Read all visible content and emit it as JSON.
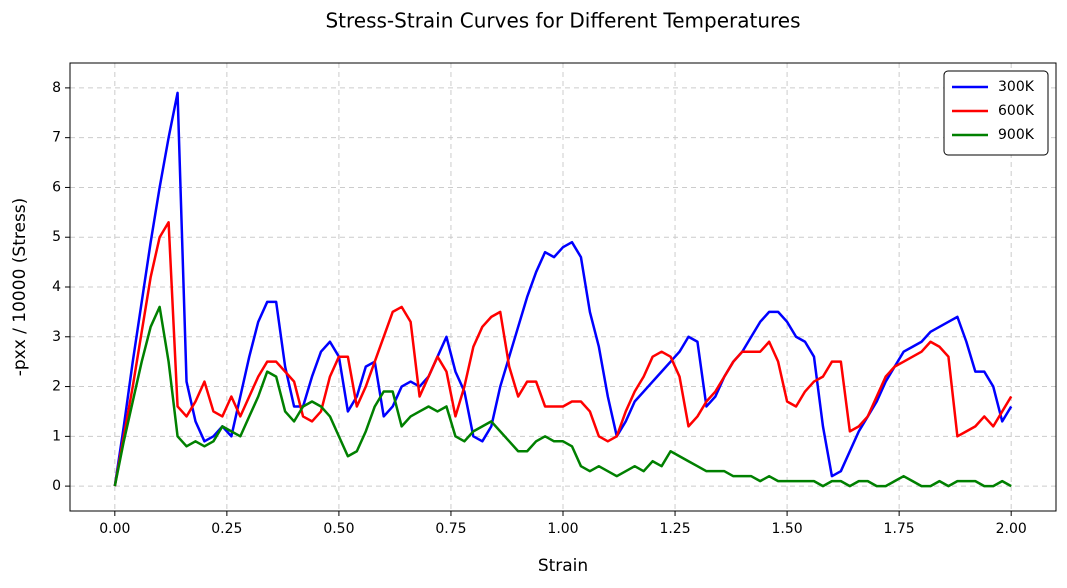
{
  "chart_data": {
    "type": "line",
    "title": "Stress-Strain Curves for Different Temperatures",
    "x_label": "Strain",
    "y_label": "-pxx / 10000 (Stress)",
    "x": [
      0,
      0.02,
      0.04,
      0.06,
      0.08,
      0.1,
      0.12,
      0.14,
      0.16,
      0.18,
      0.2,
      0.22,
      0.24,
      0.26,
      0.28,
      0.3,
      0.32,
      0.34,
      0.36,
      0.38,
      0.4,
      0.42,
      0.44,
      0.46,
      0.48,
      0.5,
      0.52,
      0.54,
      0.56,
      0.58,
      0.6,
      0.62,
      0.64,
      0.66,
      0.68,
      0.7,
      0.72,
      0.74,
      0.76,
      0.78,
      0.8,
      0.82,
      0.84,
      0.86,
      0.88,
      0.9,
      0.92,
      0.94,
      0.96,
      0.98,
      1,
      1.02,
      1.04,
      1.06,
      1.08,
      1.1,
      1.12,
      1.14,
      1.16,
      1.18,
      1.2,
      1.22,
      1.24,
      1.26,
      1.28,
      1.3,
      1.32,
      1.34,
      1.36,
      1.38,
      1.4,
      1.42,
      1.44,
      1.46,
      1.48,
      1.5,
      1.52,
      1.54,
      1.56,
      1.58,
      1.6,
      1.62,
      1.64,
      1.66,
      1.68,
      1.7,
      1.72,
      1.74,
      1.76,
      1.78,
      1.8,
      1.82,
      1.84,
      1.86,
      1.88,
      1.9,
      1.92,
      1.94,
      1.96,
      1.98,
      2
    ],
    "series": [
      {
        "name": "300K",
        "color": "#0000ff",
        "values": [
          0,
          1.2,
          2.5,
          3.7,
          4.9,
          6.0,
          7.0,
          7.9,
          2.1,
          1.3,
          0.9,
          1.0,
          1.2,
          1.0,
          1.8,
          2.6,
          3.3,
          3.7,
          3.7,
          2.4,
          1.6,
          1.6,
          2.2,
          2.7,
          2.9,
          2.6,
          1.5,
          1.8,
          2.4,
          2.5,
          1.4,
          1.6,
          2.0,
          2.1,
          2.0,
          2.2,
          2.6,
          3.0,
          2.3,
          1.9,
          1.0,
          0.9,
          1.2,
          2.0,
          2.6,
          3.2,
          3.8,
          4.3,
          4.7,
          4.6,
          4.8,
          4.9,
          4.6,
          3.5,
          2.8,
          1.8,
          1.0,
          1.3,
          1.7,
          1.9,
          2.1,
          2.3,
          2.5,
          2.7,
          3.0,
          2.9,
          1.6,
          1.8,
          2.2,
          2.5,
          2.7,
          3.0,
          3.3,
          3.5,
          3.5,
          3.3,
          3.0,
          2.9,
          2.6,
          1.2,
          0.2,
          0.3,
          0.7,
          1.1,
          1.4,
          1.7,
          2.1,
          2.4,
          2.7,
          2.8,
          2.9,
          3.1,
          3.2,
          3.3,
          3.4,
          2.9,
          2.3,
          2.3,
          2.0,
          1.3,
          1.6
        ]
      },
      {
        "name": "600K",
        "color": "#ff0000",
        "values": [
          0,
          1.0,
          2.0,
          3.1,
          4.2,
          5.0,
          5.3,
          1.6,
          1.4,
          1.7,
          2.1,
          1.5,
          1.4,
          1.8,
          1.4,
          1.8,
          2.2,
          2.5,
          2.5,
          2.3,
          2.1,
          1.4,
          1.3,
          1.5,
          2.2,
          2.6,
          2.6,
          1.6,
          2.0,
          2.5,
          3.0,
          3.5,
          3.6,
          3.3,
          1.8,
          2.2,
          2.6,
          2.3,
          1.4,
          2.0,
          2.8,
          3.2,
          3.4,
          3.5,
          2.4,
          1.8,
          2.1,
          2.1,
          1.6,
          1.6,
          1.6,
          1.7,
          1.7,
          1.5,
          1.0,
          0.9,
          1.0,
          1.5,
          1.9,
          2.2,
          2.6,
          2.7,
          2.6,
          2.2,
          1.2,
          1.4,
          1.7,
          1.9,
          2.2,
          2.5,
          2.7,
          2.7,
          2.7,
          2.9,
          2.5,
          1.7,
          1.6,
          1.9,
          2.1,
          2.2,
          2.5,
          2.5,
          1.1,
          1.2,
          1.4,
          1.8,
          2.2,
          2.4,
          2.5,
          2.6,
          2.7,
          2.9,
          2.8,
          2.6,
          1.0,
          1.1,
          1.2,
          1.4,
          1.2,
          1.5,
          1.8
        ]
      },
      {
        "name": "900K",
        "color": "#008000",
        "values": [
          0,
          0.9,
          1.7,
          2.5,
          3.2,
          3.6,
          2.5,
          1.0,
          0.8,
          0.9,
          0.8,
          0.9,
          1.2,
          1.1,
          1.0,
          1.4,
          1.8,
          2.3,
          2.2,
          1.5,
          1.3,
          1.6,
          1.7,
          1.6,
          1.4,
          1.0,
          0.6,
          0.7,
          1.1,
          1.6,
          1.9,
          1.9,
          1.2,
          1.4,
          1.5,
          1.6,
          1.5,
          1.6,
          1.0,
          0.9,
          1.1,
          1.2,
          1.3,
          1.1,
          0.9,
          0.7,
          0.7,
          0.9,
          1.0,
          0.9,
          0.9,
          0.8,
          0.4,
          0.3,
          0.4,
          0.3,
          0.2,
          0.3,
          0.4,
          0.3,
          0.5,
          0.4,
          0.7,
          0.6,
          0.5,
          0.4,
          0.3,
          0.3,
          0.3,
          0.2,
          0.2,
          0.2,
          0.1,
          0.2,
          0.1,
          0.1,
          0.1,
          0.1,
          0.1,
          0.0,
          0.1,
          0.1,
          0.0,
          0.1,
          0.1,
          0.0,
          0.0,
          0.1,
          0.2,
          0.1,
          0.0,
          0.0,
          0.1,
          0.0,
          0.1,
          0.1,
          0.1,
          0.0,
          0.0,
          0.1,
          0.0
        ]
      }
    ],
    "xlim": [
      -0.1,
      2.1
    ],
    "ylim": [
      -0.5,
      8.5
    ],
    "xticks": [
      {
        "value": 0,
        "label": "0.00"
      },
      {
        "value": 0.25,
        "label": "0.25"
      },
      {
        "value": 0.5,
        "label": "0.50"
      },
      {
        "value": 0.75,
        "label": "0.75"
      },
      {
        "value": 1,
        "label": "1.00"
      },
      {
        "value": 1.25,
        "label": "1.25"
      },
      {
        "value": 1.5,
        "label": "1.50"
      },
      {
        "value": 1.75,
        "label": "1.75"
      },
      {
        "value": 2,
        "label": "2.00"
      }
    ],
    "yticks": [
      0,
      1,
      2,
      3,
      4,
      5,
      6,
      7,
      8
    ],
    "grid": true,
    "legend": "upper right"
  }
}
